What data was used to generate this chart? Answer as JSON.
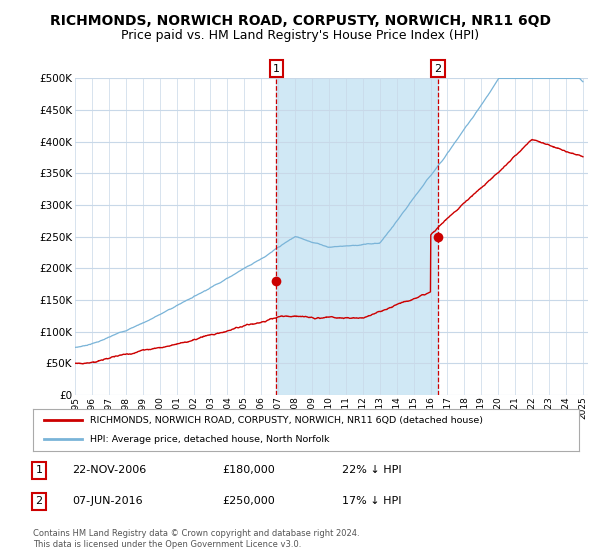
{
  "title": "RICHMONDS, NORWICH ROAD, CORPUSTY, NORWICH, NR11 6QD",
  "subtitle": "Price paid vs. HM Land Registry's House Price Index (HPI)",
  "ylabel_ticks": [
    "£0",
    "£50K",
    "£100K",
    "£150K",
    "£200K",
    "£250K",
    "£300K",
    "£350K",
    "£400K",
    "£450K",
    "£500K"
  ],
  "ytick_vals": [
    0,
    50000,
    100000,
    150000,
    200000,
    250000,
    300000,
    350000,
    400000,
    450000,
    500000
  ],
  "ylim": [
    0,
    500000
  ],
  "xlim_start": 1995.0,
  "xlim_end": 2025.3,
  "xtick_labels": [
    "1995",
    "1996",
    "1997",
    "1998",
    "1999",
    "2000",
    "2001",
    "2002",
    "2003",
    "2004",
    "2005",
    "2006",
    "2007",
    "2008",
    "2009",
    "2010",
    "2011",
    "2012",
    "2013",
    "2014",
    "2015",
    "2016",
    "2017",
    "2018",
    "2019",
    "2020",
    "2021",
    "2022",
    "2023",
    "2024",
    "2025"
  ],
  "hpi_color": "#7ab4d8",
  "price_color": "#cc0000",
  "fill_between_color": "#d0e8f5",
  "marker1_x": 2006.9,
  "marker1_y": 180000,
  "marker2_x": 2016.45,
  "marker2_y": 250000,
  "legend_line1": "RICHMONDS, NORWICH ROAD, CORPUSTY, NORWICH, NR11 6QD (detached house)",
  "legend_line2": "HPI: Average price, detached house, North Norfolk",
  "table_row1": [
    "1",
    "22-NOV-2006",
    "£180,000",
    "22% ↓ HPI"
  ],
  "table_row2": [
    "2",
    "07-JUN-2016",
    "£250,000",
    "17% ↓ HPI"
  ],
  "footnote": "Contains HM Land Registry data © Crown copyright and database right 2024.\nThis data is licensed under the Open Government Licence v3.0.",
  "bg_color": "#ffffff",
  "grid_color": "#c8d8e8",
  "title_fontsize": 10,
  "subtitle_fontsize": 9
}
